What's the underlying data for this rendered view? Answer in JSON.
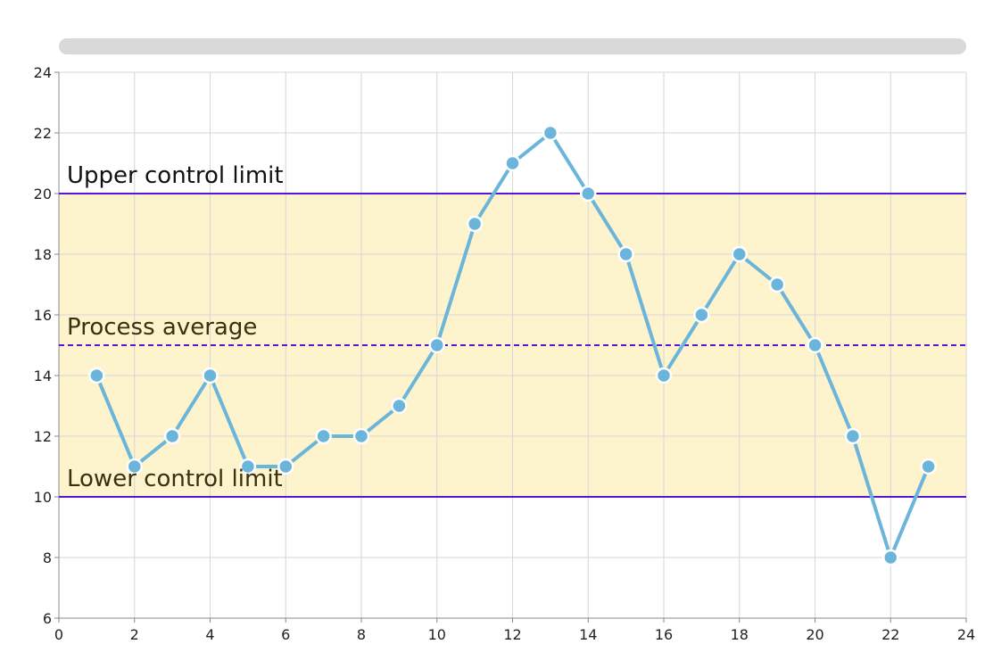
{
  "chart_data": {
    "type": "line",
    "x": [
      1,
      2,
      3,
      4,
      5,
      6,
      7,
      8,
      9,
      10,
      11,
      12,
      13,
      14,
      15,
      16,
      17,
      18,
      19,
      20,
      21,
      22,
      23
    ],
    "series": [
      {
        "values": [
          14,
          11,
          12,
          14,
          11,
          11,
          12,
          12,
          13,
          15,
          19,
          21,
          22,
          20,
          18,
          14,
          16,
          18,
          17,
          15,
          12,
          8,
          11
        ],
        "color": "#6bb5db"
      }
    ],
    "xlim": [
      0,
      24
    ],
    "ylim": [
      6,
      24
    ],
    "xticks": [
      0,
      2,
      4,
      6,
      8,
      10,
      12,
      14,
      16,
      18,
      20,
      22,
      24
    ],
    "yticks": [
      6,
      8,
      10,
      12,
      14,
      16,
      18,
      20,
      22,
      24
    ],
    "grid": true,
    "control_band": {
      "low": 10,
      "high": 20,
      "color": "#fdf3cc"
    },
    "reference_lines": [
      {
        "label": "Upper control limit",
        "value": 20,
        "style": "solid",
        "color": "#5a14d4",
        "label_color": "#111111"
      },
      {
        "label": "Process average",
        "value": 15,
        "style": "dashed",
        "color": "#5a14d4",
        "label_color": "#3a3010"
      },
      {
        "label": "Lower control limit",
        "value": 10,
        "style": "solid",
        "color": "#5a14d4",
        "label_color": "#3a3010"
      }
    ]
  }
}
